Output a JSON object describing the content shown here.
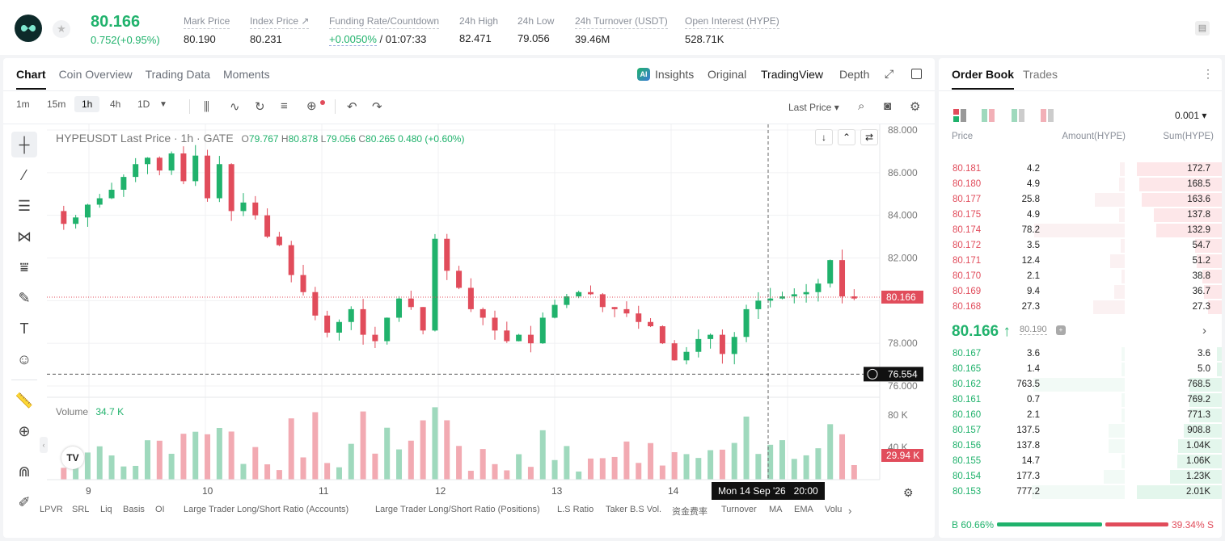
{
  "header": {
    "price": "80.166",
    "change": "0.752(+0.95%)",
    "stats": [
      {
        "label": "Mark Price",
        "value": "80.190"
      },
      {
        "label": "Index Price ↗",
        "value": "80.231"
      },
      {
        "label": "Funding Rate/Countdown",
        "value_green": "+0.0050%",
        "value": " / 01:07:33"
      },
      {
        "label": "24h High",
        "value": "82.471"
      },
      {
        "label": "24h Low",
        "value": "79.056"
      },
      {
        "label": "24h Turnover (USDT)",
        "value": "39.46M"
      },
      {
        "label": "Open Interest (HYPE)",
        "value": "528.71K"
      }
    ]
  },
  "chart_tabs": [
    "Chart",
    "Coin Overview",
    "Trading Data",
    "Moments"
  ],
  "view_tabs": [
    "Insights",
    "Original",
    "TradingView",
    "Depth"
  ],
  "timeframes": [
    "1m",
    "15m",
    "1h",
    "4h",
    "1D"
  ],
  "last_price_menu": "Last Price",
  "legend": {
    "symbol": "HYPEUSDT Last Price · 1h · GATE",
    "o": "79.767",
    "h": "80.878",
    "l": "79.056",
    "c": "80.265",
    "chg": "0.480 (+0.60%)"
  },
  "y_ticks": [
    "88.000",
    "86.000",
    "84.000",
    "82.000",
    "80.166",
    "78.000",
    "76.554",
    "76.000"
  ],
  "x_ticks": [
    "9",
    "10",
    "11",
    "12",
    "13",
    "14"
  ],
  "volume": {
    "label": "Volume",
    "value": "34.7 K",
    "tick1": "80 K",
    "tick2": "40 K",
    "last": "29.94 K"
  },
  "crosshair": "Mon 14 Sep '26   20:00",
  "bottom_tabs": [
    "LPVR",
    "SRL",
    "Liq",
    "Basis",
    "OI",
    "Large Trader Long/Short Ratio (Accounts)",
    "Large Trader Long/Short Ratio (Positions)",
    "L.S Ratio",
    "Taker B.S Vol.",
    "资金费率",
    "Turnover",
    "MA",
    "EMA",
    "Volu"
  ],
  "orderbook": {
    "tabs": [
      "Order Book",
      "Trades"
    ],
    "precision": "0.001",
    "cols": [
      "Price",
      "Amount(HYPE)",
      "Sum(HYPE)"
    ],
    "asks": [
      [
        "80.181",
        "4.2",
        "172.7"
      ],
      [
        "80.180",
        "4.9",
        "168.5"
      ],
      [
        "80.177",
        "25.8",
        "163.6"
      ],
      [
        "80.175",
        "4.9",
        "137.8"
      ],
      [
        "80.174",
        "78.2",
        "132.9"
      ],
      [
        "80.172",
        "3.5",
        "54.7"
      ],
      [
        "80.171",
        "12.4",
        "51.2"
      ],
      [
        "80.170",
        "2.1",
        "38.8"
      ],
      [
        "80.169",
        "9.4",
        "36.7"
      ],
      [
        "80.168",
        "27.3",
        "27.3"
      ]
    ],
    "mid": "80.166",
    "mark": "80.190",
    "bids": [
      [
        "80.167",
        "3.6",
        "3.6"
      ],
      [
        "80.165",
        "1.4",
        "5.0"
      ],
      [
        "80.162",
        "763.5",
        "768.5"
      ],
      [
        "80.161",
        "0.7",
        "769.2"
      ],
      [
        "80.160",
        "2.1",
        "771.3"
      ],
      [
        "80.157",
        "137.5",
        "908.8"
      ],
      [
        "80.156",
        "137.8",
        "1.04K"
      ],
      [
        "80.155",
        "14.7",
        "1.06K"
      ],
      [
        "80.154",
        "177.3",
        "1.23K"
      ],
      [
        "80.153",
        "777.2",
        "2.01K"
      ]
    ],
    "buy": "B 60.66%",
    "sell": "39.34% S"
  }
}
